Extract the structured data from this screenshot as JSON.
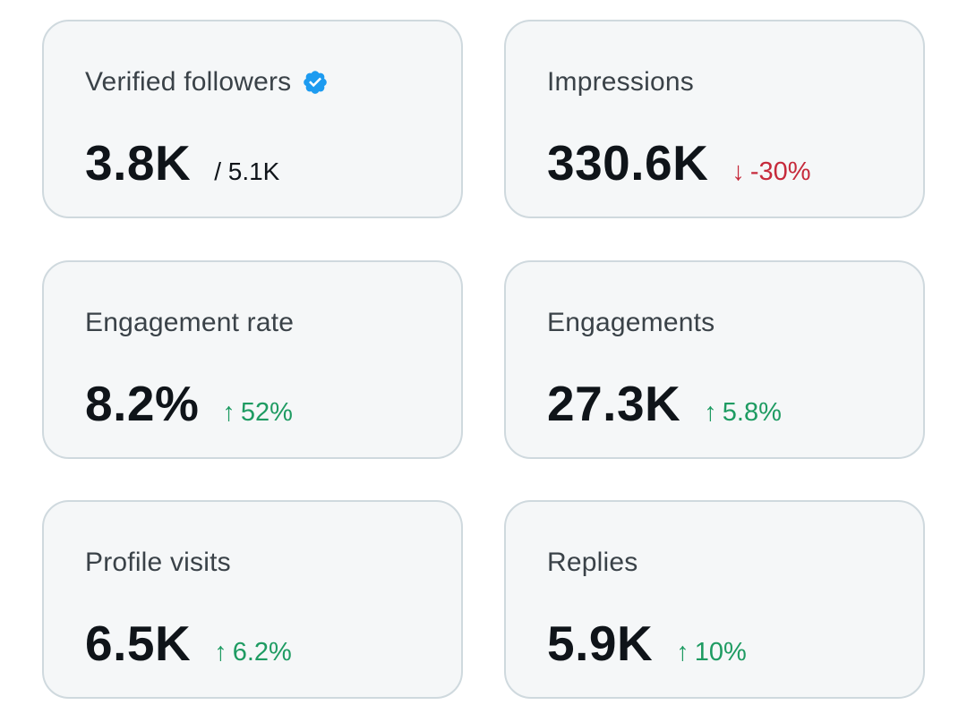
{
  "accent_colors": {
    "up": "#1e9b62",
    "down": "#c62a3b",
    "verified": "#1d9bf0"
  },
  "cards": [
    {
      "label": "Verified followers",
      "icon": "verified-badge-icon",
      "value": "3.8K",
      "total": "/ 5.1K"
    },
    {
      "label": "Impressions",
      "value": "330.6K",
      "delta": {
        "direction": "down",
        "arrow": "↓",
        "text": "-30%"
      }
    },
    {
      "label": "Engagement rate",
      "value": "8.2%",
      "delta": {
        "direction": "up",
        "arrow": "↑",
        "text": "52%"
      }
    },
    {
      "label": "Engagements",
      "value": "27.3K",
      "delta": {
        "direction": "up",
        "arrow": "↑",
        "text": "5.8%"
      }
    },
    {
      "label": "Profile visits",
      "value": "6.5K",
      "delta": {
        "direction": "up",
        "arrow": "↑",
        "text": "6.2%"
      }
    },
    {
      "label": "Replies",
      "value": "5.9K",
      "delta": {
        "direction": "up",
        "arrow": "↑",
        "text": "10%"
      }
    }
  ]
}
